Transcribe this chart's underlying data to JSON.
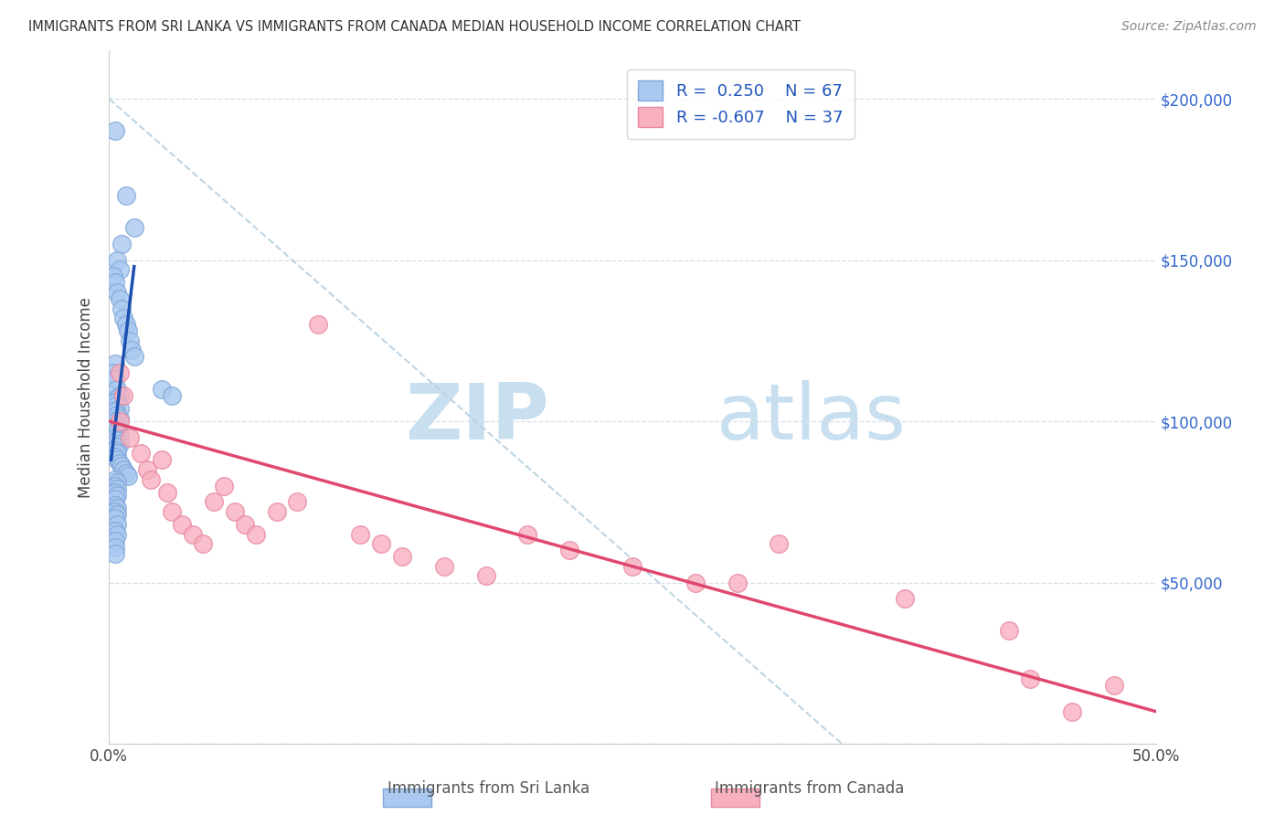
{
  "title": "IMMIGRANTS FROM SRI LANKA VS IMMIGRANTS FROM CANADA MEDIAN HOUSEHOLD INCOME CORRELATION CHART",
  "source": "Source: ZipAtlas.com",
  "ylabel": "Median Household Income",
  "xlim": [
    0,
    0.5
  ],
  "ylim": [
    0,
    215000
  ],
  "ytick_positions": [
    0,
    50000,
    100000,
    150000,
    200000
  ],
  "ytick_labels_right": [
    "",
    "$50,000",
    "$100,000",
    "$150,000",
    "$200,000"
  ],
  "xtick_positions": [
    0.0,
    0.5
  ],
  "xtick_labels": [
    "0.0%",
    "50.0%"
  ],
  "r_blue": 0.25,
  "n_blue": 67,
  "r_pink": -0.607,
  "n_pink": 37,
  "blue_color": "#aac8f0",
  "blue_edge": "#80a8d8",
  "pink_color": "#f8b0c0",
  "pink_edge": "#e888a0",
  "blue_line_color": "#1a50b0",
  "pink_line_color": "#e04870",
  "ref_line_color": "#b8d0e0",
  "watermark_zip": "ZIP",
  "watermark_atlas": "atlas",
  "watermark_color": "#c8dff0",
  "blue_scatter_x": [
    0.003,
    0.008,
    0.012,
    0.006,
    0.004,
    0.005,
    0.002,
    0.003,
    0.004,
    0.005,
    0.006,
    0.007,
    0.008,
    0.009,
    0.01,
    0.011,
    0.012,
    0.003,
    0.002,
    0.003,
    0.004,
    0.005,
    0.004,
    0.003,
    0.004,
    0.005,
    0.003,
    0.004,
    0.005,
    0.003,
    0.004,
    0.003,
    0.004,
    0.005,
    0.003,
    0.004,
    0.005,
    0.004,
    0.003,
    0.004,
    0.003,
    0.004,
    0.005,
    0.006,
    0.007,
    0.008,
    0.009,
    0.003,
    0.004,
    0.003,
    0.004,
    0.003,
    0.004,
    0.003,
    0.003,
    0.004,
    0.003,
    0.004,
    0.003,
    0.004,
    0.025,
    0.03,
    0.003,
    0.004,
    0.003,
    0.003,
    0.003
  ],
  "blue_scatter_y": [
    190000,
    170000,
    160000,
    155000,
    150000,
    147000,
    145000,
    143000,
    140000,
    138000,
    135000,
    132000,
    130000,
    128000,
    125000,
    122000,
    120000,
    118000,
    115000,
    113000,
    110000,
    108000,
    107000,
    106000,
    105000,
    104000,
    103000,
    102000,
    101000,
    100000,
    99000,
    98000,
    97000,
    96000,
    95000,
    94000,
    93000,
    92000,
    91000,
    90000,
    89000,
    88000,
    87000,
    86000,
    85000,
    84000,
    83000,
    82000,
    81000,
    80000,
    79000,
    78000,
    77000,
    76000,
    74000,
    73000,
    72000,
    71000,
    70000,
    68000,
    110000,
    108000,
    66000,
    65000,
    63000,
    61000,
    59000
  ],
  "pink_scatter_x": [
    0.005,
    0.007,
    0.01,
    0.015,
    0.018,
    0.02,
    0.025,
    0.028,
    0.03,
    0.035,
    0.04,
    0.045,
    0.05,
    0.055,
    0.06,
    0.065,
    0.07,
    0.08,
    0.09,
    0.1,
    0.12,
    0.13,
    0.14,
    0.16,
    0.18,
    0.2,
    0.22,
    0.25,
    0.28,
    0.32,
    0.38,
    0.43,
    0.44,
    0.46,
    0.48,
    0.005,
    0.3
  ],
  "pink_scatter_y": [
    115000,
    108000,
    95000,
    90000,
    85000,
    82000,
    88000,
    78000,
    72000,
    68000,
    65000,
    62000,
    75000,
    80000,
    72000,
    68000,
    65000,
    72000,
    75000,
    130000,
    65000,
    62000,
    58000,
    55000,
    52000,
    65000,
    60000,
    55000,
    50000,
    62000,
    45000,
    35000,
    20000,
    10000,
    18000,
    100000,
    50000
  ],
  "blue_line_x": [
    0.001,
    0.012
  ],
  "blue_line_y": [
    88000,
    148000
  ],
  "pink_line_x": [
    0.0,
    0.5
  ],
  "pink_line_y": [
    100000,
    10000
  ],
  "ref_line_x": [
    0.0,
    0.35
  ],
  "ref_line_y": [
    200000,
    0
  ]
}
